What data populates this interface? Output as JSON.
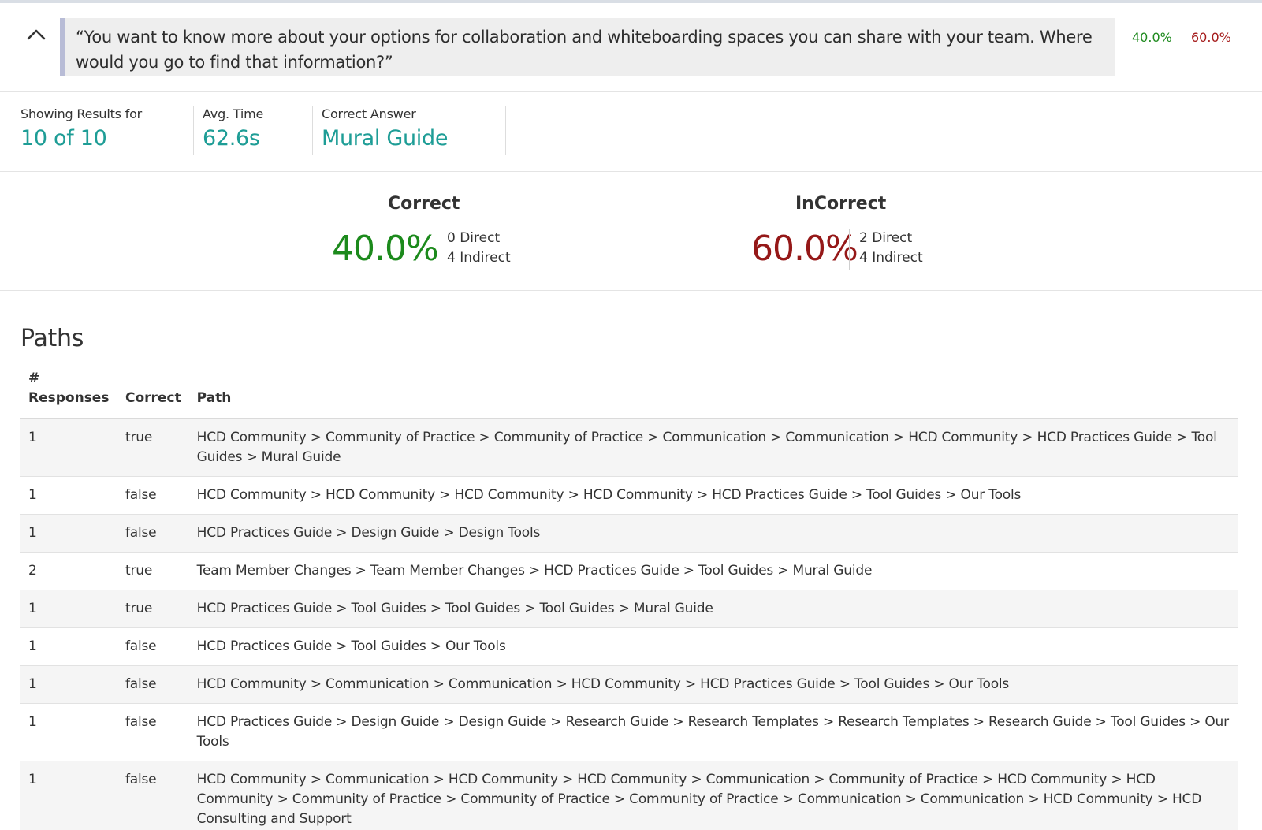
{
  "question": {
    "text": "“You want to know more about your options for collaboration and whiteboarding spaces you can share with your team. Where would you go to find that information?”",
    "correct_pct": "40.0%",
    "incorrect_pct": "60.0%"
  },
  "stats": {
    "showing_label": "Showing Results for",
    "showing_value": "10 of 10",
    "avg_time_label": "Avg. Time",
    "avg_time_value": "62.6s",
    "correct_answer_label": "Correct Answer",
    "correct_answer_value": "Mural Guide"
  },
  "summary": {
    "correct_title": "Correct",
    "correct_pct": "40.0%",
    "correct_direct": "0 Direct",
    "correct_indirect": "4 Indirect",
    "incorrect_title": "InCorrect",
    "incorrect_pct": "60.0%",
    "incorrect_direct": "2 Direct",
    "incorrect_indirect": "4 Indirect"
  },
  "paths": {
    "title": "Paths",
    "headers": {
      "responses_hash": "#",
      "responses": "Responses",
      "correct": "Correct",
      "path": "Path"
    },
    "rows": [
      {
        "responses": "1",
        "correct": "true",
        "path": "HCD Community > Community of Practice > Community of Practice > Communication > Communication > HCD Community > HCD Practices Guide > Tool Guides > Mural Guide"
      },
      {
        "responses": "1",
        "correct": "false",
        "path": "HCD Community > HCD Community > HCD Community > HCD Community > HCD Practices Guide > Tool Guides > Our Tools"
      },
      {
        "responses": "1",
        "correct": "false",
        "path": "HCD Practices Guide > Design Guide > Design Tools"
      },
      {
        "responses": "2",
        "correct": "true",
        "path": "Team Member Changes > Team Member Changes > HCD Practices Guide > Tool Guides > Mural Guide"
      },
      {
        "responses": "1",
        "correct": "true",
        "path": "HCD Practices Guide > Tool Guides > Tool Guides > Tool Guides > Mural Guide"
      },
      {
        "responses": "1",
        "correct": "false",
        "path": "HCD Practices Guide > Tool Guides > Our Tools"
      },
      {
        "responses": "1",
        "correct": "false",
        "path": "HCD Community > Communication > Communication > HCD Community > HCD Practices Guide > Tool Guides > Our Tools"
      },
      {
        "responses": "1",
        "correct": "false",
        "path": "HCD Practices Guide > Design Guide > Design Guide > Research Guide > Research Templates > Research Templates > Research Guide > Tool Guides > Our Tools"
      },
      {
        "responses": "1",
        "correct": "false",
        "path": "HCD Community > Communication > HCD Community > HCD Community > Communication > Community of Practice > HCD Community > HCD Community > Community of Practice > Community of Practice > Community of Practice > Communication > Communication > HCD Community > HCD Consulting and Support"
      }
    ]
  },
  "colors": {
    "accent_teal": "#1e9d96",
    "correct_green": "#1c8a1c",
    "incorrect_red": "#951818"
  }
}
